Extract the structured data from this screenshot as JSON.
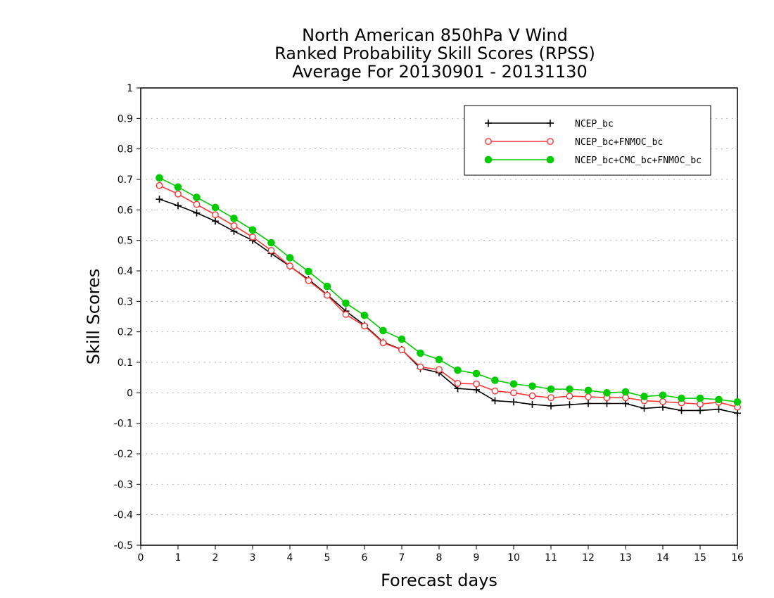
{
  "chart_data": {
    "type": "line",
    "title_lines": [
      "North American 850hPa V Wind",
      "Ranked Probability Skill Scores (RPSS)",
      "Average For 20130901 - 20131130"
    ],
    "xlabel": "Forecast days",
    "ylabel": "Skill Scores",
    "xlim": [
      0,
      16
    ],
    "ylim": [
      -0.5,
      1
    ],
    "x_ticks": [
      "0",
      "1",
      "2",
      "3",
      "4",
      "5",
      "6",
      "7",
      "8",
      "9",
      "10",
      "11",
      "12",
      "13",
      "14",
      "15",
      "16"
    ],
    "y_ticks": [
      "1",
      "0.9",
      "0.8",
      "0.7",
      "0.6",
      "0.5",
      "0.4",
      "0.3",
      "0.2",
      "0.1",
      "0",
      "-0.1",
      "-0.2",
      "-0.3",
      "-0.4",
      "-0.5"
    ],
    "grid": "horizontal dotted",
    "legend_position": "top-right",
    "x": [
      0.5,
      1,
      1.5,
      2,
      2.5,
      3,
      3.5,
      4,
      4.5,
      5,
      5.5,
      6,
      6.5,
      7,
      7.5,
      8,
      8.5,
      9,
      9.5,
      10,
      10.5,
      11,
      11.5,
      12,
      12.5,
      13,
      13.5,
      14,
      14.5,
      15,
      15.5,
      16
    ],
    "series": [
      {
        "name": "NCEP_bc",
        "color": "#000000",
        "marker": "plus",
        "values": [
          0.635,
          0.614,
          0.59,
          0.563,
          0.53,
          0.5,
          0.457,
          0.415,
          0.372,
          0.322,
          0.268,
          0.222,
          0.166,
          0.142,
          0.08,
          0.066,
          0.014,
          0.01,
          -0.026,
          -0.03,
          -0.038,
          -0.043,
          -0.039,
          -0.035,
          -0.035,
          -0.035,
          -0.051,
          -0.047,
          -0.058,
          -0.058,
          -0.054,
          -0.067
        ]
      },
      {
        "name": "NCEP_bc+FNMOC_bc",
        "color": "#ff3333",
        "marker": "open-circle",
        "values": [
          0.68,
          0.652,
          0.618,
          0.584,
          0.548,
          0.511,
          0.467,
          0.416,
          0.368,
          0.32,
          0.257,
          0.219,
          0.164,
          0.141,
          0.085,
          0.076,
          0.031,
          0.029,
          0.006,
          0.0,
          -0.01,
          -0.016,
          -0.011,
          -0.013,
          -0.016,
          -0.016,
          -0.026,
          -0.029,
          -0.033,
          -0.037,
          -0.031,
          -0.047
        ]
      },
      {
        "name": "NCEP_bc+CMC_bc+FNMOC_bc",
        "color": "#00cc00",
        "marker": "filled-circle",
        "values": [
          0.705,
          0.675,
          0.641,
          0.608,
          0.572,
          0.534,
          0.492,
          0.443,
          0.398,
          0.349,
          0.294,
          0.254,
          0.204,
          0.176,
          0.13,
          0.109,
          0.074,
          0.063,
          0.041,
          0.029,
          0.022,
          0.012,
          0.012,
          0.008,
          0.0,
          0.003,
          -0.012,
          -0.008,
          -0.018,
          -0.018,
          -0.022,
          -0.03
        ]
      }
    ]
  }
}
